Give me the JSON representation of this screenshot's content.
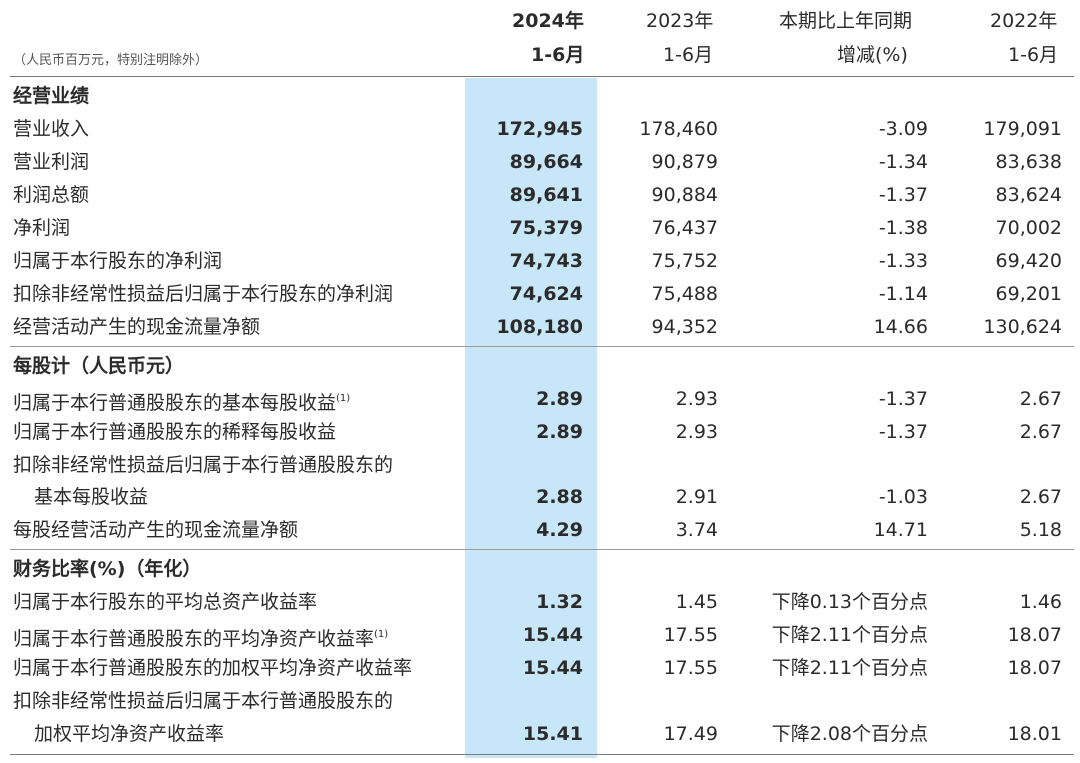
{
  "header": {
    "unit_note": "（人民币百万元，特别注明除外）",
    "col1_line1": "2024年",
    "col1_line2": "1-6月",
    "col2_line1": "2023年",
    "col2_line2": "1-6月",
    "col3_line1": "本期比上年同期",
    "col3_line2": "增减(%)",
    "col4_line1": "2022年",
    "col4_line2": "1-6月"
  },
  "sections": {
    "s1": "经营业绩",
    "s2": "每股计（人民币元）",
    "s3": "财务比率(%)（年化）"
  },
  "footnote_mark": "(1)",
  "rows": {
    "r1": {
      "label": "营业收入",
      "v2024": "172,945",
      "v2023": "178,460",
      "chg": "-3.09",
      "v2022": "179,091"
    },
    "r2": {
      "label": "营业利润",
      "v2024": "89,664",
      "v2023": "90,879",
      "chg": "-1.34",
      "v2022": "83,638"
    },
    "r3": {
      "label": "利润总额",
      "v2024": "89,641",
      "v2023": "90,884",
      "chg": "-1.37",
      "v2022": "83,624"
    },
    "r4": {
      "label": "净利润",
      "v2024": "75,379",
      "v2023": "76,437",
      "chg": "-1.38",
      "v2022": "70,002"
    },
    "r5": {
      "label": "归属于本行股东的净利润",
      "v2024": "74,743",
      "v2023": "75,752",
      "chg": "-1.33",
      "v2022": "69,420"
    },
    "r6": {
      "label": "扣除非经常性损益后归属于本行股东的净利润",
      "v2024": "74,624",
      "v2023": "75,488",
      "chg": "-1.14",
      "v2022": "69,201"
    },
    "r7": {
      "label": "经营活动产生的现金流量净额",
      "v2024": "108,180",
      "v2023": "94,352",
      "chg": "14.66",
      "v2022": "130,624"
    },
    "r8": {
      "label": "归属于本行普通股股东的基本每股收益",
      "v2024": "2.89",
      "v2023": "2.93",
      "chg": "-1.37",
      "v2022": "2.67"
    },
    "r9": {
      "label": "归属于本行普通股股东的稀释每股收益",
      "v2024": "2.89",
      "v2023": "2.93",
      "chg": "-1.37",
      "v2022": "2.67"
    },
    "r10": {
      "label_line1": "扣除非经常性损益后归属于本行普通股股东的",
      "label_line2": "基本每股收益",
      "v2024": "2.88",
      "v2023": "2.91",
      "chg": "-1.03",
      "v2022": "2.67"
    },
    "r11": {
      "label": "每股经营活动产生的现金流量净额",
      "v2024": "4.29",
      "v2023": "3.74",
      "chg": "14.71",
      "v2022": "5.18"
    },
    "r12": {
      "label": "归属于本行股东的平均总资产收益率",
      "v2024": "1.32",
      "v2023": "1.45",
      "chg": "下降0.13个百分点",
      "v2022": "1.46"
    },
    "r13": {
      "label": "归属于本行普通股股东的平均净资产收益率",
      "v2024": "15.44",
      "v2023": "17.55",
      "chg": "下降2.11个百分点",
      "v2022": "18.07"
    },
    "r14": {
      "label": "归属于本行普通股股东的加权平均净资产收益率",
      "v2024": "15.44",
      "v2023": "17.55",
      "chg": "下降2.11个百分点",
      "v2022": "18.07"
    },
    "r15": {
      "label_line1": "扣除非经常性损益后归属于本行普通股股东的",
      "label_line2": "加权平均净资产收益率",
      "v2024": "15.41",
      "v2023": "17.49",
      "chg": "下降2.08个百分点",
      "v2022": "18.01"
    }
  }
}
